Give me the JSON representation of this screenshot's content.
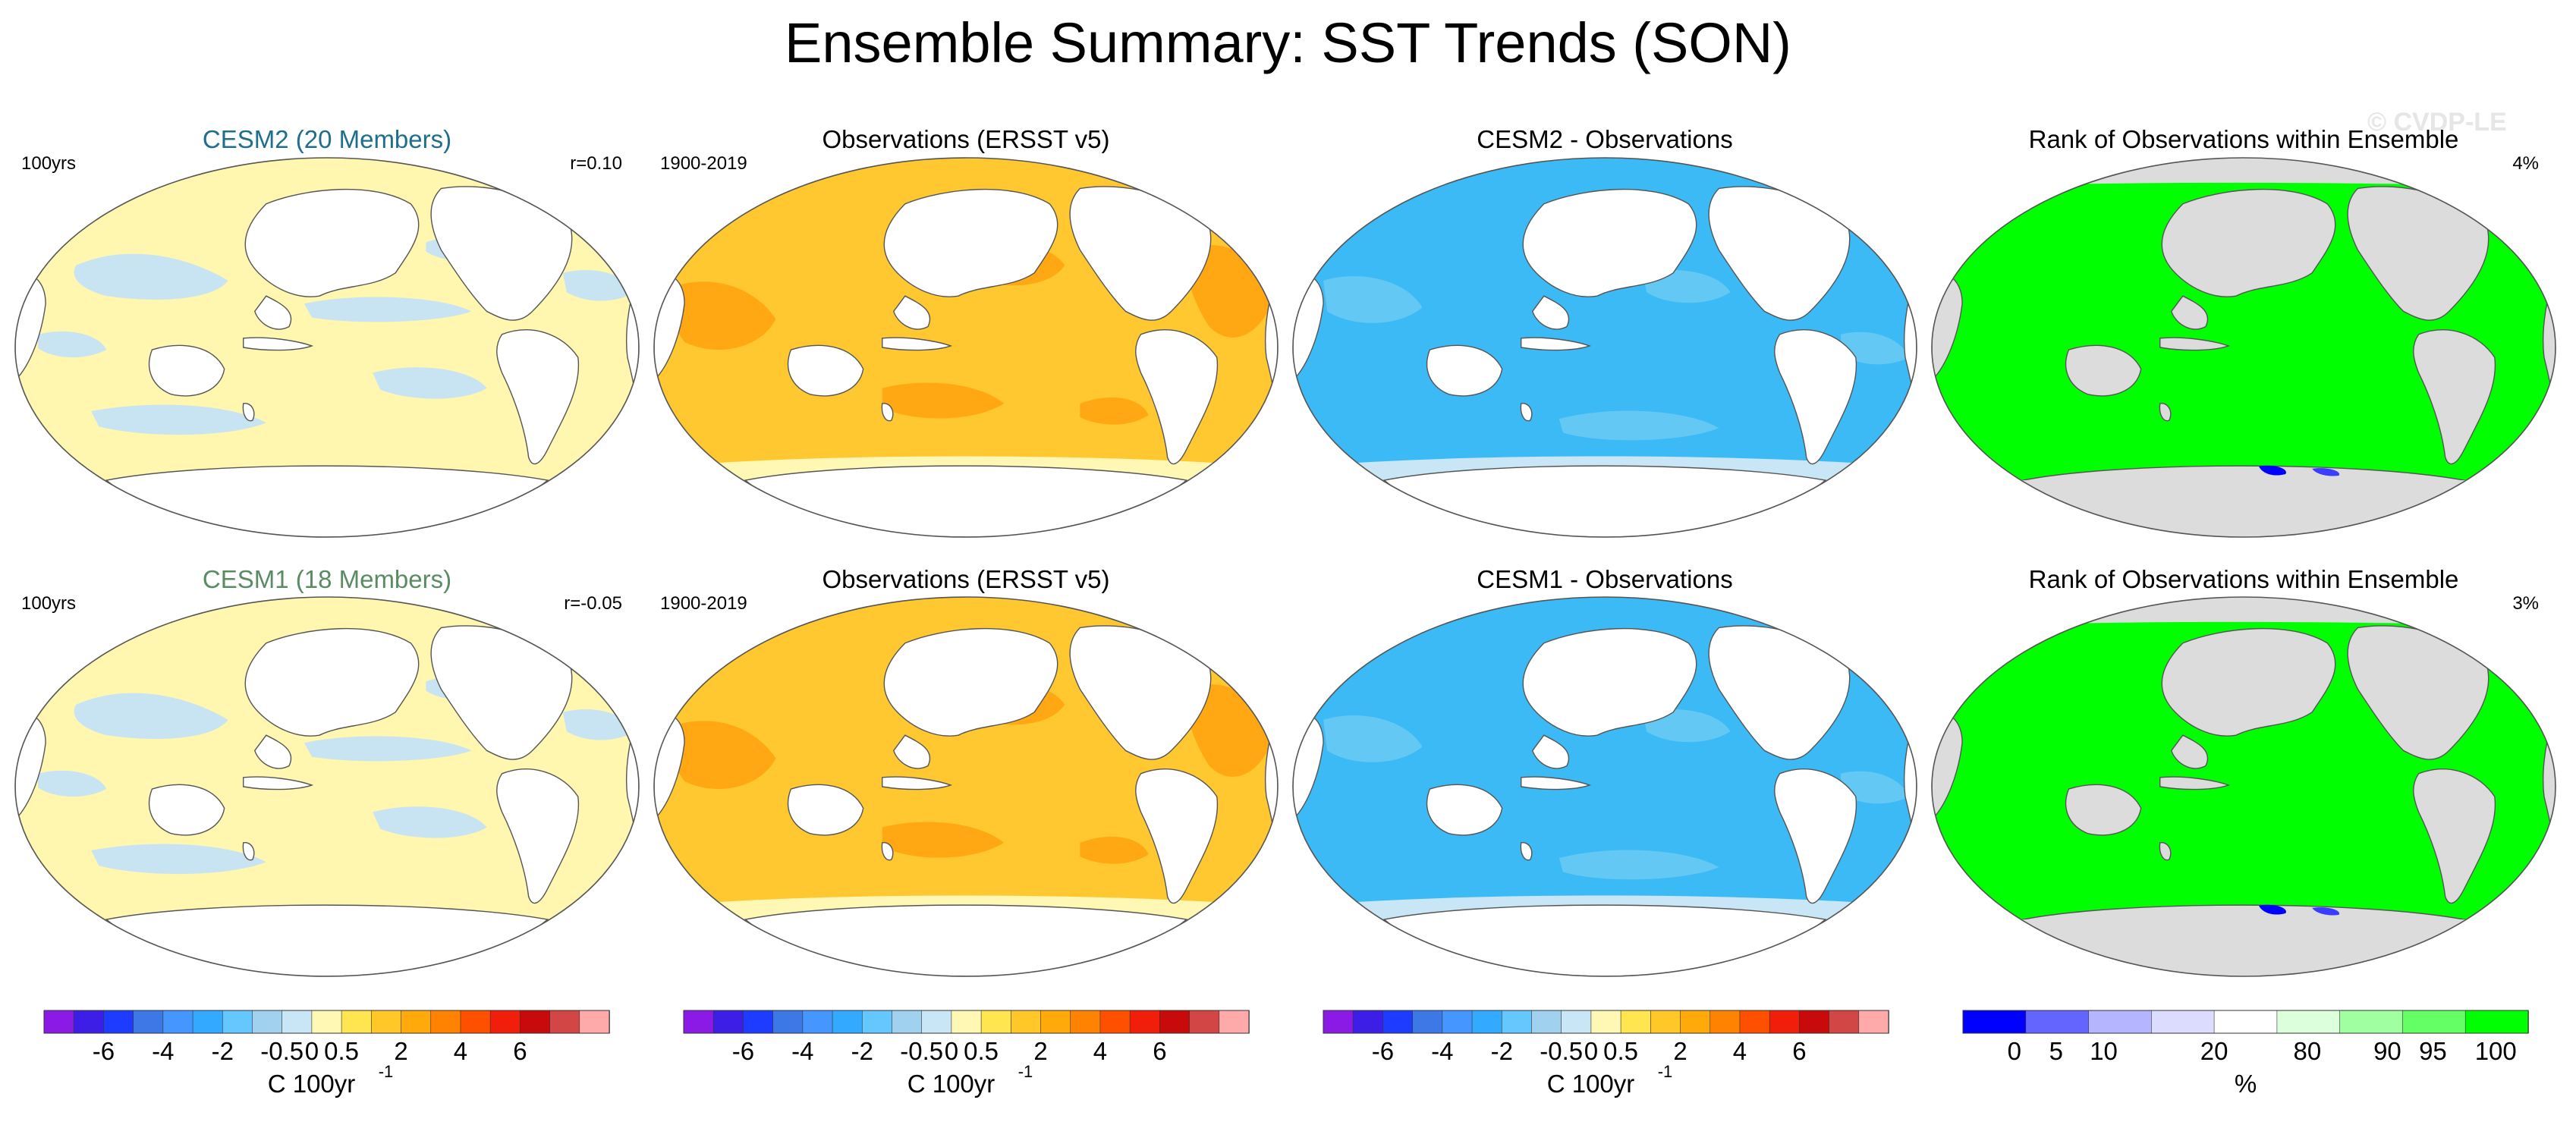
{
  "figure": {
    "title": "Ensemble Summary: SST Trends (SON)",
    "watermark": "© CVDP-LE"
  },
  "colors": {
    "land": "#ffffff",
    "land_gray": "#dcdcdc",
    "coast": "#555555",
    "trend_scale": [
      "#8b1ae6",
      "#3c1ee6",
      "#1e3cff",
      "#3c78e6",
      "#4696ff",
      "#32aaff",
      "#64c8ff",
      "#a0d2f0",
      "#c8e6f5",
      "#fff7b4",
      "#ffe650",
      "#ffc828",
      "#ffaa0a",
      "#ff8200",
      "#ff5000",
      "#f01e0a",
      "#c80a0a",
      "#d24646",
      "#ffaaaa"
    ],
    "rank_scale": [
      "#0000ff",
      "#6464ff",
      "#b4b4ff",
      "#dcdcff",
      "#ffffff",
      "#dcffdc",
      "#a0ffa0",
      "#64ff64",
      "#00ff00"
    ]
  },
  "chart_data": [
    {
      "type": "heatmap",
      "title": "CESM2 (20 Members)",
      "title_color": "#1e6e8c",
      "left_label": "100yrs",
      "right_label": "r=0.10",
      "ocean_color": "#fff6b0",
      "pattern_color": "#c8e4f2",
      "pattern": "mixed"
    },
    {
      "type": "heatmap",
      "title": "Observations (ERSST v5)",
      "title_color": "#000000",
      "left_label": "1900-2019",
      "right_label": "",
      "ocean_color": "#ffc830",
      "pattern_color": "#ffa814",
      "pattern": "warm"
    },
    {
      "type": "heatmap",
      "title": "CESM2 - Observations",
      "title_color": "#000000",
      "left_label": "",
      "right_label": "",
      "ocean_color": "#3cbaf5",
      "pattern_color": "#64c8f5",
      "pattern": "cool"
    },
    {
      "type": "heatmap",
      "title": "Rank of Observations within Ensemble",
      "title_color": "#000000",
      "left_label": "",
      "right_label": "4%",
      "ocean_color": "#00ff00",
      "pattern_color": "#00ff00",
      "pattern": "rank"
    },
    {
      "type": "heatmap",
      "title": "CESM1 (18 Members)",
      "title_color": "#5a8c64",
      "left_label": "100yrs",
      "right_label": "r=-0.05",
      "ocean_color": "#fff6b0",
      "pattern_color": "#c8e4f2",
      "pattern": "mixed"
    },
    {
      "type": "heatmap",
      "title": "Observations (ERSST v5)",
      "title_color": "#000000",
      "left_label": "1900-2019",
      "right_label": "",
      "ocean_color": "#ffc830",
      "pattern_color": "#ffa814",
      "pattern": "warm"
    },
    {
      "type": "heatmap",
      "title": "CESM1 - Observations",
      "title_color": "#000000",
      "left_label": "",
      "right_label": "",
      "ocean_color": "#3cbaf5",
      "pattern_color": "#64c8f5",
      "pattern": "cool"
    },
    {
      "type": "heatmap",
      "title": "Rank of Observations within Ensemble",
      "title_color": "#000000",
      "left_label": "",
      "right_label": "3%",
      "ocean_color": "#00ff00",
      "pattern_color": "#00ff00",
      "pattern": "rank"
    }
  ],
  "colorbars": [
    {
      "kind": "trend",
      "tick_labels": [
        "-6",
        "-4",
        "-2",
        "-0.5",
        "0",
        "0.5",
        "2",
        "4",
        "6"
      ],
      "unit": "C 100yr",
      "unit_sup": "-1"
    },
    {
      "kind": "trend",
      "tick_labels": [
        "-6",
        "-4",
        "-2",
        "-0.5",
        "0",
        "0.5",
        "2",
        "4",
        "6"
      ],
      "unit": "C 100yr",
      "unit_sup": "-1"
    },
    {
      "kind": "trend",
      "tick_labels": [
        "-6",
        "-4",
        "-2",
        "-0.5",
        "0",
        "0.5",
        "2",
        "4",
        "6"
      ],
      "unit": "C 100yr",
      "unit_sup": "-1"
    },
    {
      "kind": "rank",
      "tick_labels": [
        "0",
        "5",
        "10",
        "20",
        "80",
        "90",
        "95",
        "100"
      ],
      "unit": "%",
      "unit_sup": ""
    }
  ]
}
